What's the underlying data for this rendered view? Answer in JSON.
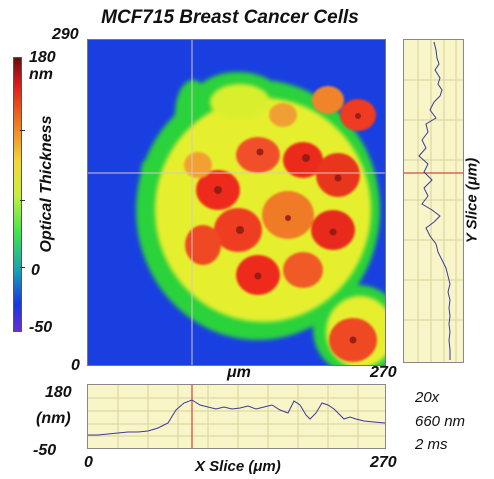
{
  "title": "MCF715 Breast Cancer Cells",
  "colorbar": {
    "label": "Optical Thickness",
    "top_value": "180",
    "unit": "nm",
    "mid_value": "0",
    "bottom_value": "-50"
  },
  "image_axes": {
    "y_top": "290",
    "y_bottom": "0",
    "x_unit": "μm",
    "x_max": "270"
  },
  "y_slice": {
    "label": "Y Slice (μm)"
  },
  "x_slice": {
    "label": "X Slice (μm)",
    "y_top": "180",
    "y_unit": "(nm)",
    "y_bottom": "-50",
    "x_min": "0",
    "x_max": "270"
  },
  "acquisition": {
    "magnification": "20x",
    "wavelength": "660 nm",
    "exposure": "2 ms"
  },
  "colors": {
    "background_blue": "#1a3fe0",
    "plot_fill": "#f8f5c8",
    "profile_line": "#3a3a9a",
    "crosshair": "#d02020"
  }
}
